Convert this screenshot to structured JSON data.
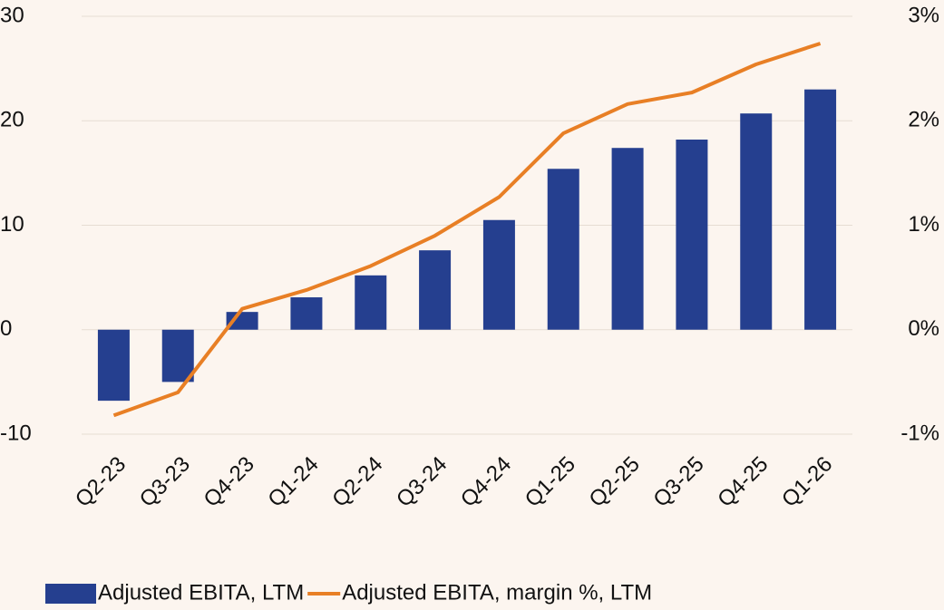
{
  "chart_data": {
    "type": "bar_line",
    "categories": [
      "Q2-23",
      "Q3-23",
      "Q4-23",
      "Q1-24",
      "Q2-24",
      "Q3-24",
      "Q4-24",
      "Q1-25",
      "Q2-25",
      "Q3-25",
      "Q4-25",
      "Q1-26"
    ],
    "series": [
      {
        "name": "Adjusted EBITA, LTM",
        "type": "bar",
        "color": "#253f8f",
        "values": [
          -6.8,
          -5.0,
          1.7,
          3.1,
          5.2,
          7.6,
          10.5,
          15.4,
          17.4,
          18.2,
          20.7,
          23.0
        ]
      },
      {
        "name": "Adjusted EBITA, margin %, LTM",
        "type": "line",
        "axis": "y2",
        "color": "#e87f25",
        "values": [
          -0.82,
          -0.6,
          0.2,
          0.38,
          0.61,
          0.9,
          1.27,
          1.88,
          2.16,
          2.27,
          2.54,
          2.74
        ]
      }
    ],
    "ylim": [
      -10,
      30
    ],
    "yticks": [
      -10,
      0,
      10,
      20,
      30
    ],
    "y2lim": [
      -1,
      3
    ],
    "y2ticks": [
      {
        "value": -1,
        "label": "-1%"
      },
      {
        "value": 0,
        "label": "0%"
      },
      {
        "value": 1,
        "label": "1%"
      },
      {
        "value": 2,
        "label": "2%"
      },
      {
        "value": 3,
        "label": "3%"
      }
    ],
    "grid": true,
    "legend": "bottom"
  }
}
